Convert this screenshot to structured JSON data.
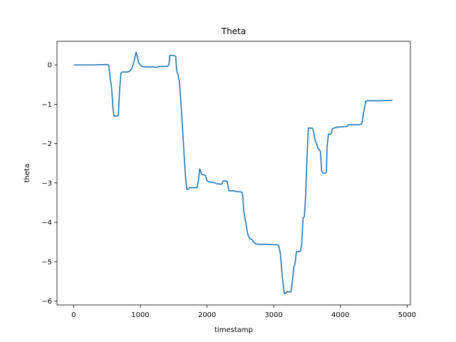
{
  "chart_data": {
    "type": "line",
    "title": "Theta",
    "xlabel": "timestamp",
    "ylabel": "theta",
    "xlim": [
      -250,
      5050
    ],
    "ylim": [
      -6.1,
      0.6
    ],
    "grid": false,
    "x_ticks": [
      0,
      1000,
      2000,
      3000,
      4000,
      5000
    ],
    "y_ticks": [
      0,
      -1,
      -2,
      -3,
      -4,
      -5,
      -6
    ],
    "x_tick_labels": [
      "0",
      "1000",
      "2000",
      "3000",
      "4000",
      "5000"
    ],
    "y_tick_labels": [
      "0",
      "−1",
      "−2",
      "−3",
      "−4",
      "−5",
      "−6"
    ],
    "series": [
      {
        "color": "#1f77b4",
        "points": [
          [
            0,
            0.0
          ],
          [
            100,
            0.0
          ],
          [
            300,
            0.0
          ],
          [
            500,
            0.01
          ],
          [
            525,
            0.0
          ],
          [
            550,
            -0.35
          ],
          [
            570,
            -0.6
          ],
          [
            590,
            -1.1
          ],
          [
            605,
            -1.3
          ],
          [
            650,
            -1.3
          ],
          [
            670,
            -1.28
          ],
          [
            690,
            -0.6
          ],
          [
            710,
            -0.2
          ],
          [
            730,
            -0.18
          ],
          [
            800,
            -0.18
          ],
          [
            840,
            -0.16
          ],
          [
            870,
            -0.1
          ],
          [
            900,
            0.05
          ],
          [
            920,
            0.2
          ],
          [
            935,
            0.32
          ],
          [
            950,
            0.25
          ],
          [
            975,
            0.05
          ],
          [
            1000,
            0.0
          ],
          [
            1020,
            -0.04
          ],
          [
            1100,
            -0.05
          ],
          [
            1200,
            -0.05
          ],
          [
            1250,
            -0.06
          ],
          [
            1270,
            -0.04
          ],
          [
            1400,
            -0.04
          ],
          [
            1430,
            0.0
          ],
          [
            1440,
            0.24
          ],
          [
            1500,
            0.24
          ],
          [
            1530,
            0.22
          ],
          [
            1545,
            -0.15
          ],
          [
            1565,
            -0.25
          ],
          [
            1585,
            -0.4
          ],
          [
            1610,
            -1.0
          ],
          [
            1640,
            -1.8
          ],
          [
            1660,
            -2.4
          ],
          [
            1680,
            -2.9
          ],
          [
            1700,
            -3.17
          ],
          [
            1720,
            -3.15
          ],
          [
            1740,
            -3.12
          ],
          [
            1850,
            -3.12
          ],
          [
            1875,
            -2.9
          ],
          [
            1890,
            -2.64
          ],
          [
            1900,
            -2.68
          ],
          [
            1920,
            -2.78
          ],
          [
            1960,
            -2.8
          ],
          [
            1980,
            -2.82
          ],
          [
            2000,
            -2.95
          ],
          [
            2030,
            -2.97
          ],
          [
            2100,
            -2.99
          ],
          [
            2150,
            -3.02
          ],
          [
            2220,
            -3.03
          ],
          [
            2240,
            -2.95
          ],
          [
            2300,
            -2.95
          ],
          [
            2330,
            -3.2
          ],
          [
            2400,
            -3.2
          ],
          [
            2450,
            -3.22
          ],
          [
            2520,
            -3.23
          ],
          [
            2535,
            -3.3
          ],
          [
            2550,
            -3.7
          ],
          [
            2580,
            -4.0
          ],
          [
            2610,
            -4.3
          ],
          [
            2640,
            -4.42
          ],
          [
            2670,
            -4.43
          ],
          [
            2700,
            -4.5
          ],
          [
            2730,
            -4.55
          ],
          [
            2800,
            -4.56
          ],
          [
            2900,
            -4.56
          ],
          [
            3000,
            -4.57
          ],
          [
            3060,
            -4.57
          ],
          [
            3080,
            -4.62
          ],
          [
            3100,
            -4.8
          ],
          [
            3130,
            -5.4
          ],
          [
            3160,
            -5.82
          ],
          [
            3180,
            -5.8
          ],
          [
            3200,
            -5.76
          ],
          [
            3260,
            -5.77
          ],
          [
            3280,
            -5.5
          ],
          [
            3300,
            -5.15
          ],
          [
            3320,
            -5.05
          ],
          [
            3340,
            -4.75
          ],
          [
            3400,
            -4.74
          ],
          [
            3420,
            -4.55
          ],
          [
            3440,
            -3.9
          ],
          [
            3460,
            -3.85
          ],
          [
            3480,
            -3.3
          ],
          [
            3500,
            -2.3
          ],
          [
            3520,
            -1.6
          ],
          [
            3580,
            -1.61
          ],
          [
            3600,
            -1.7
          ],
          [
            3620,
            -1.9
          ],
          [
            3640,
            -2.0
          ],
          [
            3660,
            -2.1
          ],
          [
            3700,
            -2.2
          ],
          [
            3720,
            -2.7
          ],
          [
            3740,
            -2.75
          ],
          [
            3780,
            -2.75
          ],
          [
            3790,
            -2.72
          ],
          [
            3800,
            -2.1
          ],
          [
            3820,
            -1.76
          ],
          [
            3860,
            -1.75
          ],
          [
            3880,
            -1.62
          ],
          [
            3900,
            -1.61
          ],
          [
            3950,
            -1.58
          ],
          [
            4050,
            -1.57
          ],
          [
            4100,
            -1.56
          ],
          [
            4120,
            -1.52
          ],
          [
            4280,
            -1.52
          ],
          [
            4320,
            -1.5
          ],
          [
            4360,
            -1.1
          ],
          [
            4380,
            -0.92
          ],
          [
            4420,
            -0.91
          ],
          [
            4600,
            -0.91
          ],
          [
            4780,
            -0.9
          ]
        ]
      }
    ]
  }
}
